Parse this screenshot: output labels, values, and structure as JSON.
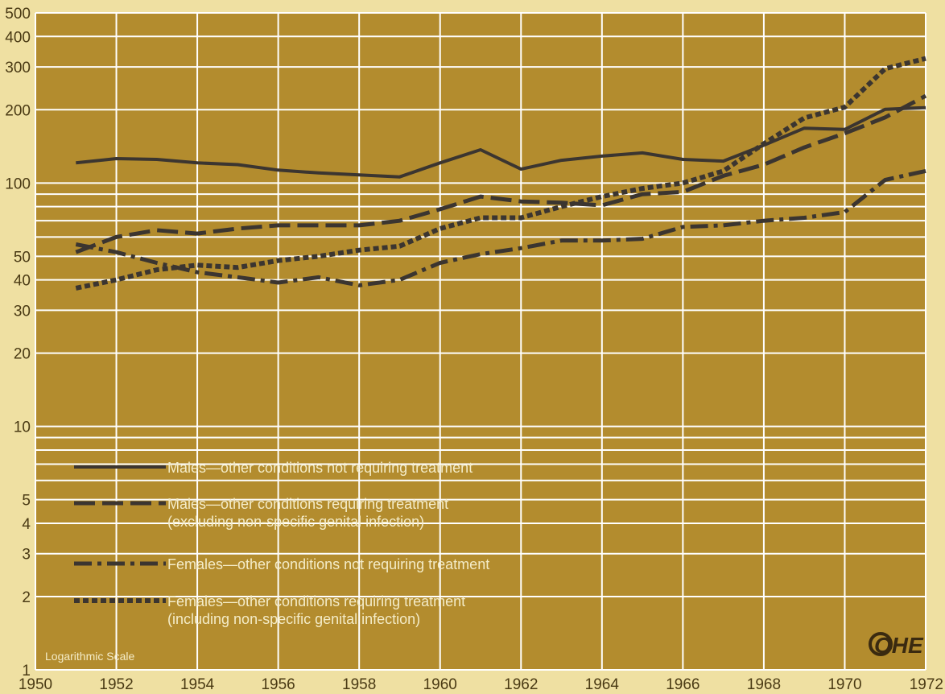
{
  "chart_data": {
    "type": "line",
    "title": "",
    "xlabel": "",
    "ylabel": "",
    "y_scale": "log",
    "scale_note": "Logarithmic Scale",
    "xlim": [
      1950,
      1972
    ],
    "ylim": [
      1,
      500
    ],
    "x_ticks": [
      "1950",
      "1952",
      "1954",
      "1956",
      "1958",
      "1960",
      "1962",
      "1964",
      "1966",
      "1968",
      "1970",
      "1972"
    ],
    "y_ticks": [
      {
        "value": 1,
        "label": "1"
      },
      {
        "value": 2,
        "label": "2"
      },
      {
        "value": 3,
        "label": "3"
      },
      {
        "value": 4,
        "label": "4"
      },
      {
        "value": 5,
        "label": "5"
      },
      {
        "value": 10,
        "label": "10"
      },
      {
        "value": 20,
        "label": "20"
      },
      {
        "value": 30,
        "label": "30"
      },
      {
        "value": 40,
        "label": "40"
      },
      {
        "value": 50,
        "label": "50"
      },
      {
        "value": 100,
        "label": "100"
      },
      {
        "value": 200,
        "label": "200"
      },
      {
        "value": 300,
        "label": "300"
      },
      {
        "value": 400,
        "label": "400"
      },
      {
        "value": 500,
        "label": "500"
      }
    ],
    "grid": true,
    "legend_position": "bottom-left",
    "background_color": "#b38c2e",
    "line_color": "#3b3530",
    "logo": "OHE",
    "series": [
      {
        "legend_lines": [
          "Males—other conditions not requiring treatment"
        ],
        "style": "solid",
        "x": [
          1951,
          1952,
          1953,
          1954,
          1955,
          1956,
          1957,
          1958,
          1959,
          1960,
          1961,
          1962,
          1963,
          1964,
          1965,
          1966,
          1967,
          1968,
          1969,
          1970,
          1971,
          1972
        ],
        "values": [
          121,
          126,
          125,
          121,
          119,
          113,
          110,
          108,
          106,
          121,
          137,
          114,
          124,
          129,
          133,
          125,
          123,
          143,
          168,
          166,
          201,
          204
        ]
      },
      {
        "legend_lines": [
          "Males—other conditions requiring treatment",
          "(excluding non-specific genital infection)"
        ],
        "style": "dashed",
        "x": [
          1951,
          1952,
          1953,
          1954,
          1955,
          1956,
          1957,
          1958,
          1959,
          1960,
          1961,
          1962,
          1963,
          1964,
          1965,
          1966,
          1967,
          1968,
          1969,
          1970,
          1971,
          1972
        ],
        "values": [
          52,
          60,
          64,
          62,
          65,
          67,
          67,
          67,
          70,
          78,
          88,
          84,
          83,
          81,
          90,
          92,
          107,
          119,
          140,
          160,
          186,
          228
        ]
      },
      {
        "legend_lines": [
          "Females—other conditions not requiring treatment"
        ],
        "style": "dash-dot",
        "x": [
          1951,
          1952,
          1953,
          1954,
          1955,
          1956,
          1957,
          1958,
          1959,
          1960,
          1961,
          1962,
          1963,
          1964,
          1965,
          1966,
          1967,
          1968,
          1969,
          1970,
          1971,
          1972
        ],
        "values": [
          56,
          52,
          47,
          43,
          41,
          39,
          41,
          38,
          40,
          47,
          51,
          54,
          58,
          58,
          59,
          66,
          67,
          70,
          72,
          76,
          103,
          112
        ]
      },
      {
        "legend_lines": [
          "Females—other conditions requiring treatment",
          "(including non-specific genital infection)"
        ],
        "style": "dotted",
        "x": [
          1951,
          1952,
          1953,
          1954,
          1955,
          1956,
          1957,
          1958,
          1959,
          1960,
          1961,
          1962,
          1963,
          1964,
          1965,
          1966,
          1967,
          1968,
          1969,
          1970,
          1971,
          1972
        ],
        "values": [
          37,
          40,
          44,
          46,
          45,
          48,
          50,
          53,
          55,
          65,
          72,
          72,
          80,
          88,
          95,
          100,
          112,
          145,
          185,
          205,
          295,
          325
        ]
      }
    ]
  }
}
